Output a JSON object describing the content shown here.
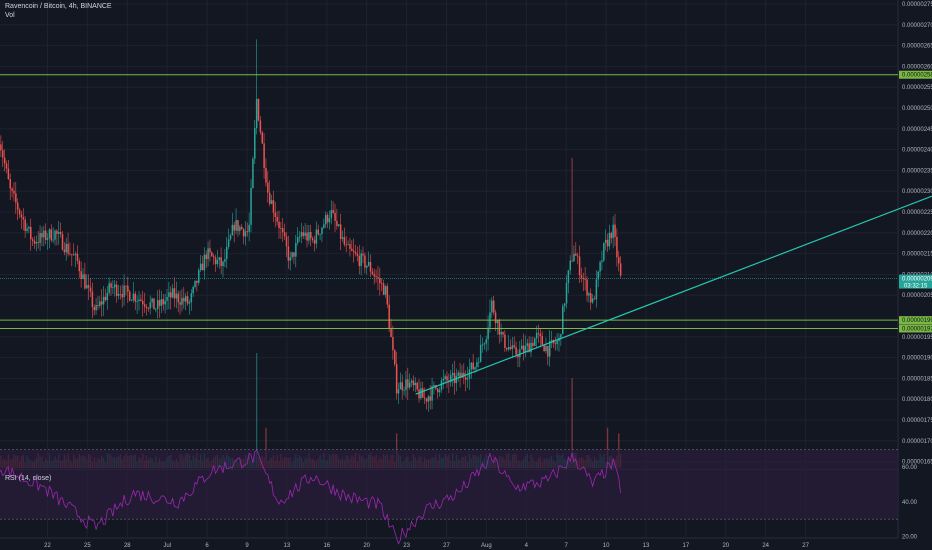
{
  "header": {
    "symbol_title": "Ravencoin / Bitcoin, 4h, BINANCE",
    "volume_label": "Vol",
    "rsi_label": "RSI (14, close)"
  },
  "colors": {
    "background": "#131722",
    "grid": "#1e2230",
    "up": "#26a69a",
    "down": "#ef5350",
    "level_line": "#7ab648",
    "trendline": "#26c6b0",
    "current_price_line": "#26a69a",
    "rsi_line": "#9c27b0",
    "rsi_band": "#2a1e3a"
  },
  "chart_data": [
    {
      "type": "candlestick",
      "title": "Ravencoin / Bitcoin, 4h, BINANCE",
      "x_tick_labels": [
        "22",
        "25",
        "28",
        "Jul",
        "6",
        "9",
        "13",
        "16",
        "20",
        "23",
        "27",
        "Aug",
        "4",
        "7",
        "10",
        "13",
        "17",
        "20",
        "24",
        "27"
      ],
      "y_tick_labels": [
        "0.00000165",
        "0.00000170",
        "0.00000175",
        "0.00000180",
        "0.00000185",
        "0.00000190",
        "0.00000195",
        "0.00000205",
        "0.00000210",
        "0.00000215",
        "0.00000220",
        "0.00000225",
        "0.00000230",
        "0.00000235",
        "0.00000240",
        "0.00000245",
        "0.00000250",
        "0.00000255",
        "0.00000260",
        "0.00000265",
        "0.00000270",
        "0.00000275"
      ],
      "ylim": [
        1.6e-06,
        2.7625e-06
      ],
      "grid": true,
      "horizontal_levels": [
        {
          "label": "0.00000258",
          "value": 2.58e-06
        },
        {
          "label": "0.00000199",
          "value": 1.99e-06
        },
        {
          "label": "0.00000197",
          "value": 1.97e-06
        }
      ],
      "current_price": {
        "label": "0.00000209",
        "value": 2.09e-06,
        "countdown": "03:32:15"
      },
      "trendline": {
        "start": {
          "day": 37.2,
          "price": 1.812e-06
        },
        "end": {
          "day": 86.2,
          "price": 2.318e-06
        }
      },
      "candle_anchors": [
        {
          "day": 0,
          "price": 2.43e-06
        },
        {
          "day": 1,
          "price": 2.3e-06
        },
        {
          "day": 3,
          "price": 2.18e-06
        },
        {
          "day": 5,
          "price": 2.2e-06
        },
        {
          "day": 7,
          "price": 2.13e-06
        },
        {
          "day": 8.6,
          "price": 2.01e-06
        },
        {
          "day": 10,
          "price": 2.07e-06
        },
        {
          "day": 12,
          "price": 2.05e-06
        },
        {
          "day": 14,
          "price": 2.02e-06
        },
        {
          "day": 15.5,
          "price": 2.05e-06
        },
        {
          "day": 17,
          "price": 2.03e-06
        },
        {
          "day": 18.5,
          "price": 2.15e-06
        },
        {
          "day": 20,
          "price": 2.12e-06
        },
        {
          "day": 21,
          "price": 2.22e-06
        },
        {
          "day": 22.3,
          "price": 2.2e-06
        },
        {
          "day": 23,
          "price": 2.52e-06
        },
        {
          "day": 24,
          "price": 2.3e-06
        },
        {
          "day": 25,
          "price": 2.22e-06
        },
        {
          "day": 26,
          "price": 2.13e-06
        },
        {
          "day": 27,
          "price": 2.2e-06
        },
        {
          "day": 28,
          "price": 2.18e-06
        },
        {
          "day": 29.6,
          "price": 2.25e-06
        },
        {
          "day": 31,
          "price": 2.16e-06
        },
        {
          "day": 33,
          "price": 2.12e-06
        },
        {
          "day": 34.5,
          "price": 2.06e-06
        },
        {
          "day": 35.5,
          "price": 1.83e-06
        },
        {
          "day": 36.5,
          "price": 1.84e-06
        },
        {
          "day": 38,
          "price": 1.8e-06
        },
        {
          "day": 39.5,
          "price": 1.84e-06
        },
        {
          "day": 41,
          "price": 1.85e-06
        },
        {
          "day": 42.5,
          "price": 1.88e-06
        },
        {
          "day": 43.5,
          "price": 1.96e-06
        },
        {
          "day": 44,
          "price": 2.03e-06
        },
        {
          "day": 45,
          "price": 1.94e-06
        },
        {
          "day": 46,
          "price": 1.91e-06
        },
        {
          "day": 47,
          "price": 1.92e-06
        },
        {
          "day": 48,
          "price": 1.95e-06
        },
        {
          "day": 49,
          "price": 1.92e-06
        },
        {
          "day": 50,
          "price": 1.94e-06
        },
        {
          "day": 50.7,
          "price": 2.08e-06
        },
        {
          "day": 51.3,
          "price": 2.16e-06
        },
        {
          "day": 52,
          "price": 2.1e-06
        },
        {
          "day": 53,
          "price": 2.03e-06
        },
        {
          "day": 54,
          "price": 2.16e-06
        },
        {
          "day": 54.8,
          "price": 2.21e-06
        },
        {
          "day": 55.5,
          "price": 2.09e-06
        }
      ],
      "rsi": {
        "label": "RSI (14, close)",
        "levels": [
          20,
          40,
          60
        ],
        "ylim": [
          15,
          78
        ],
        "band": [
          30,
          70
        ],
        "anchors": [
          {
            "day": 0,
            "value": 60
          },
          {
            "day": 4,
            "value": 48
          },
          {
            "day": 8.6,
            "value": 25
          },
          {
            "day": 12,
            "value": 45
          },
          {
            "day": 16,
            "value": 40
          },
          {
            "day": 19,
            "value": 58
          },
          {
            "day": 23,
            "value": 66
          },
          {
            "day": 25,
            "value": 40
          },
          {
            "day": 28,
            "value": 55
          },
          {
            "day": 31,
            "value": 43
          },
          {
            "day": 34,
            "value": 38
          },
          {
            "day": 35.5,
            "value": 18
          },
          {
            "day": 38,
            "value": 35
          },
          {
            "day": 41,
            "value": 45
          },
          {
            "day": 44,
            "value": 65
          },
          {
            "day": 46,
            "value": 48
          },
          {
            "day": 49,
            "value": 52
          },
          {
            "day": 51.3,
            "value": 66
          },
          {
            "day": 53,
            "value": 50
          },
          {
            "day": 54.8,
            "value": 62
          },
          {
            "day": 55.5,
            "value": 48
          }
        ]
      },
      "volume_spikes": [
        {
          "day": 23,
          "rel": 1.0
        },
        {
          "day": 23.8,
          "rel": 0.35
        },
        {
          "day": 35.5,
          "rel": 0.3
        },
        {
          "day": 51.2,
          "rel": 0.78
        },
        {
          "day": 54.3,
          "rel": 0.35
        },
        {
          "day": 55.3,
          "rel": 0.3
        }
      ]
    }
  ]
}
